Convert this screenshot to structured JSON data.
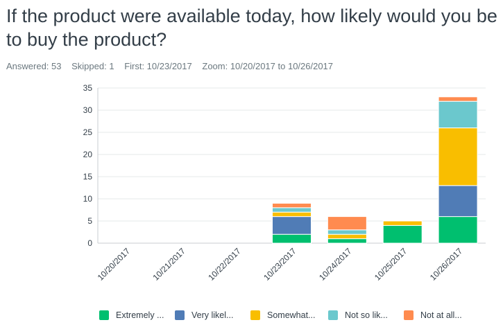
{
  "question": {
    "title": "If the product were available today, how likely would you be to buy the product?"
  },
  "meta": {
    "answered": "Answered: 53",
    "skipped": "Skipped: 1",
    "first": "First: 10/23/2017",
    "zoom": "Zoom: 10/20/2017 to 10/26/2017"
  },
  "chart_data": {
    "type": "bar",
    "stacked": true,
    "categories": [
      "10/20/2017",
      "10/21/2017",
      "10/22/2017",
      "10/23/2017",
      "10/24/2017",
      "10/25/2017",
      "10/26/2017"
    ],
    "series": [
      {
        "name": "Extremely ...",
        "color": "#00bf6f",
        "values": [
          0,
          0,
          0,
          2,
          1,
          4,
          6
        ]
      },
      {
        "name": "Very likel...",
        "color": "#507cb6",
        "values": [
          0,
          0,
          0,
          4,
          0,
          0,
          7
        ]
      },
      {
        "name": "Somewhat...",
        "color": "#f9be00",
        "values": [
          0,
          0,
          0,
          1,
          1,
          1,
          13
        ]
      },
      {
        "name": "Not so lik...",
        "color": "#6bc8cd",
        "values": [
          0,
          0,
          0,
          1,
          1,
          0,
          6
        ]
      },
      {
        "name": "Not at all...",
        "color": "#ff8b4f",
        "values": [
          0,
          0,
          0,
          1,
          3,
          0,
          1
        ]
      }
    ],
    "ylim": [
      0,
      35
    ],
    "yticks": [
      0,
      5,
      10,
      15,
      20,
      25,
      30,
      35
    ],
    "grid": true,
    "legend_position": "bottom"
  }
}
